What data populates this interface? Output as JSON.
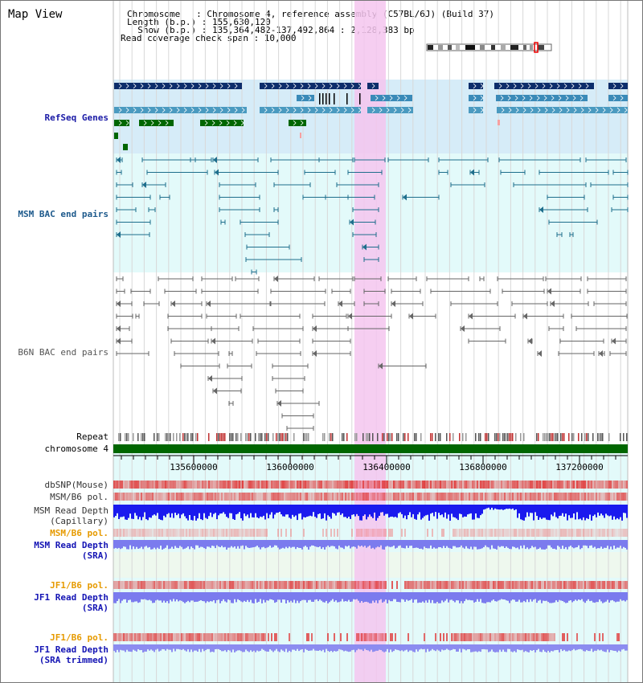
{
  "view_title": "Map View",
  "info": {
    "chromosome": "Chromosome   : Chromosome 4, reference assembly (C57BL/6J) (Build 37)",
    "length": "Length (b.p.) : 155,630,120",
    "show": "  Show (b.p.) : 135,364,482-137,492,864 : 2,128,383 bp",
    "coverage": "Read coverage check span : 10,000"
  },
  "tracks": {
    "refseq": "RefSeq Genes",
    "msm_bac": "MSM BAC end pairs",
    "b6n_bac": "B6N BAC end pairs",
    "repeat": "Repeat",
    "chromosome": "chromosome 4",
    "dbsnp": "dbSNP(Mouse)",
    "msm_pol1": "MSM/B6 pol.",
    "msm_depth_cap_1": "MSM Read Depth",
    "msm_depth_cap_2": "(Capillary)",
    "msm_pol2": "MSM/B6 pol.",
    "msm_depth_sra_1": "MSM Read Depth",
    "msm_depth_sra_2": "(SRA)",
    "jf1_pol1": "JF1/B6 pol.",
    "jf1_depth_sra_1": "JF1 Read Depth",
    "jf1_depth_sra_2": "(SRA)",
    "jf1_pol2": "JF1/B6 pol.",
    "jf1_depth_trim_1": "JF1 Read Depth",
    "jf1_depth_trim_2": "(SRA trimmed)"
  },
  "axis_ticks": [
    "135600000",
    "136000000",
    "136400000",
    "136800000",
    "137200000"
  ],
  "colors": {
    "refseq_label": "#1a1aa6",
    "msm_label": "#1e5a8c",
    "pol_orange": "#e69a00",
    "depth_blue": "#1414b4",
    "highlight": "#f4c6ee",
    "refseq_bg": "#d6ecf8",
    "track_bg": "#e3fafa",
    "chromosome_bar": "#006600"
  }
}
